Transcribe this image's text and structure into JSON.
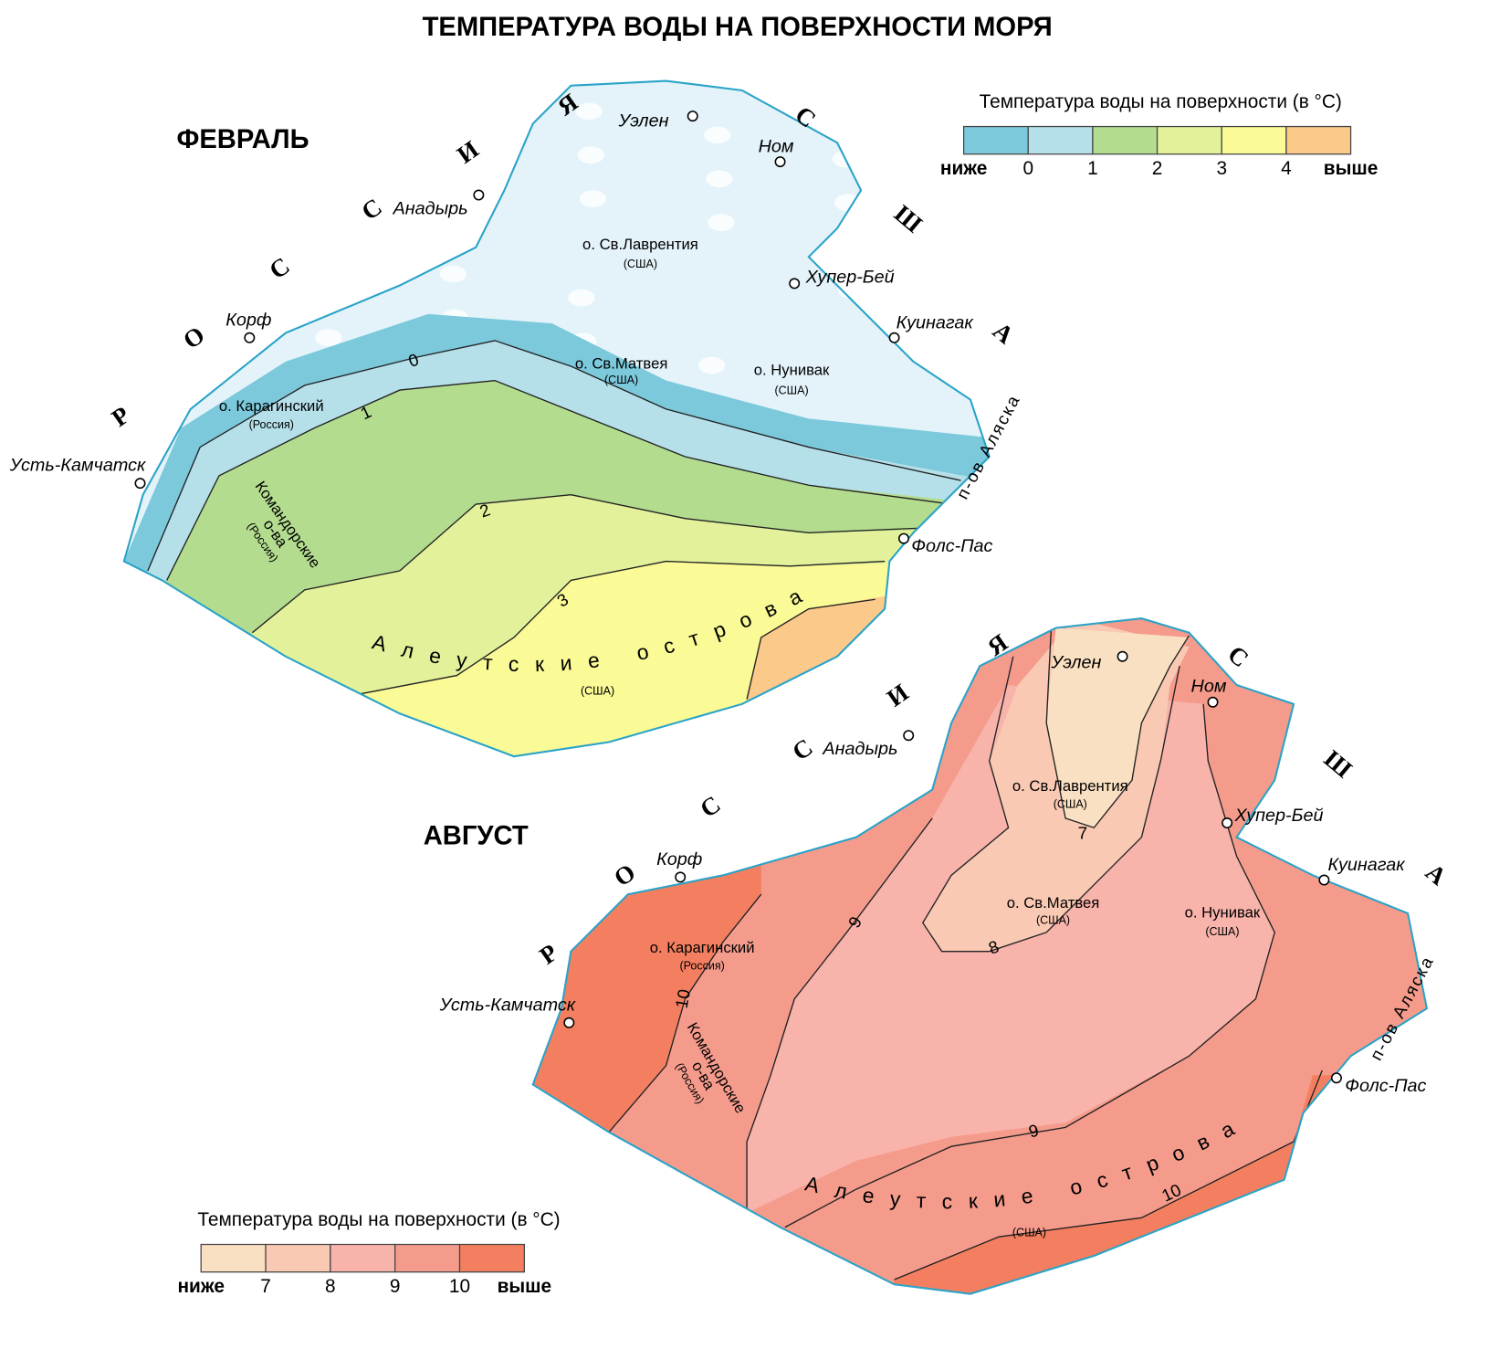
{
  "title": "ТЕМПЕРАТУРА ВОДЫ НА ПОВЕРХНОСТИ МОРЯ",
  "maps": [
    {
      "name": "ФЕВРАЛЬ",
      "legend": {
        "title": "Температура воды на поверхности (в °C)",
        "low": "ниже",
        "high": "выше",
        "ticks": [
          0,
          1,
          2,
          3,
          4
        ],
        "colors": [
          "#7cc9dc",
          "#b5e0ea",
          "#b3dc8f",
          "#e3f19a",
          "#fafa96",
          "#fbc98a"
        ]
      },
      "isotherm_labels": [
        0,
        1,
        2,
        3
      ],
      "cities": [
        "Уэлен",
        "Ном",
        "Анадырь",
        "Хупер-Бей",
        "Куинагак",
        "Корф",
        "Усть-Камчатск",
        "Фолс-Пас"
      ],
      "islands": [
        {
          "lines": [
            "о. Св.Лаврентия"
          ],
          "owner": "(США)"
        },
        {
          "lines": [
            "о. Св.Матвея"
          ],
          "owner": "(США)"
        },
        {
          "lines": [
            "о. Нунивак"
          ],
          "owner": "(США)"
        },
        {
          "lines": [
            "о. Карагинский"
          ],
          "owner": "(Россия)"
        },
        {
          "lines": [
            "Командорские",
            "о-ва"
          ],
          "owner": "(Россия)"
        }
      ],
      "chain": {
        "name": "Алеутские острова",
        "owner": "(США)"
      },
      "peninsula": "п-ов Аляска",
      "russia": [
        "Р",
        "О",
        "С",
        "С",
        "И",
        "Я"
      ],
      "usa": [
        "С",
        "Ш",
        "А"
      ]
    },
    {
      "name": "АВГУСТ",
      "legend": {
        "title": "Температура воды на поверхности (в °C)",
        "low": "ниже",
        "high": "выше",
        "ticks": [
          7,
          8,
          9,
          10
        ],
        "colors": [
          "#fae0c2",
          "#f9c9b3",
          "#f8b3ab",
          "#f59b8c",
          "#f47f60"
        ]
      },
      "isotherm_labels": [
        7,
        8,
        9,
        9,
        10,
        10
      ],
      "cities": [
        "Уэлен",
        "Ном",
        "Анадырь",
        "Хупер-Бей",
        "Куинагак",
        "Корф",
        "Усть-Камчатск",
        "Фолс-Пас"
      ],
      "islands": [
        {
          "lines": [
            "о. Св.Лаврентия"
          ],
          "owner": "(США)"
        },
        {
          "lines": [
            "о. Св.Матвея"
          ],
          "owner": "(США)"
        },
        {
          "lines": [
            "о. Нунивак"
          ],
          "owner": "(США)"
        },
        {
          "lines": [
            "о. Карагинский"
          ],
          "owner": "(Россия)"
        },
        {
          "lines": [
            "Командорские",
            "о-ва"
          ],
          "owner": "(Россия)"
        }
      ],
      "chain": {
        "name": "Алеутские острова",
        "owner": "(США)"
      },
      "peninsula": "п-ов Аляска",
      "russia": [
        "Р",
        "О",
        "С",
        "С",
        "И",
        "Я"
      ],
      "usa": [
        "С",
        "Ш",
        "А"
      ]
    }
  ]
}
